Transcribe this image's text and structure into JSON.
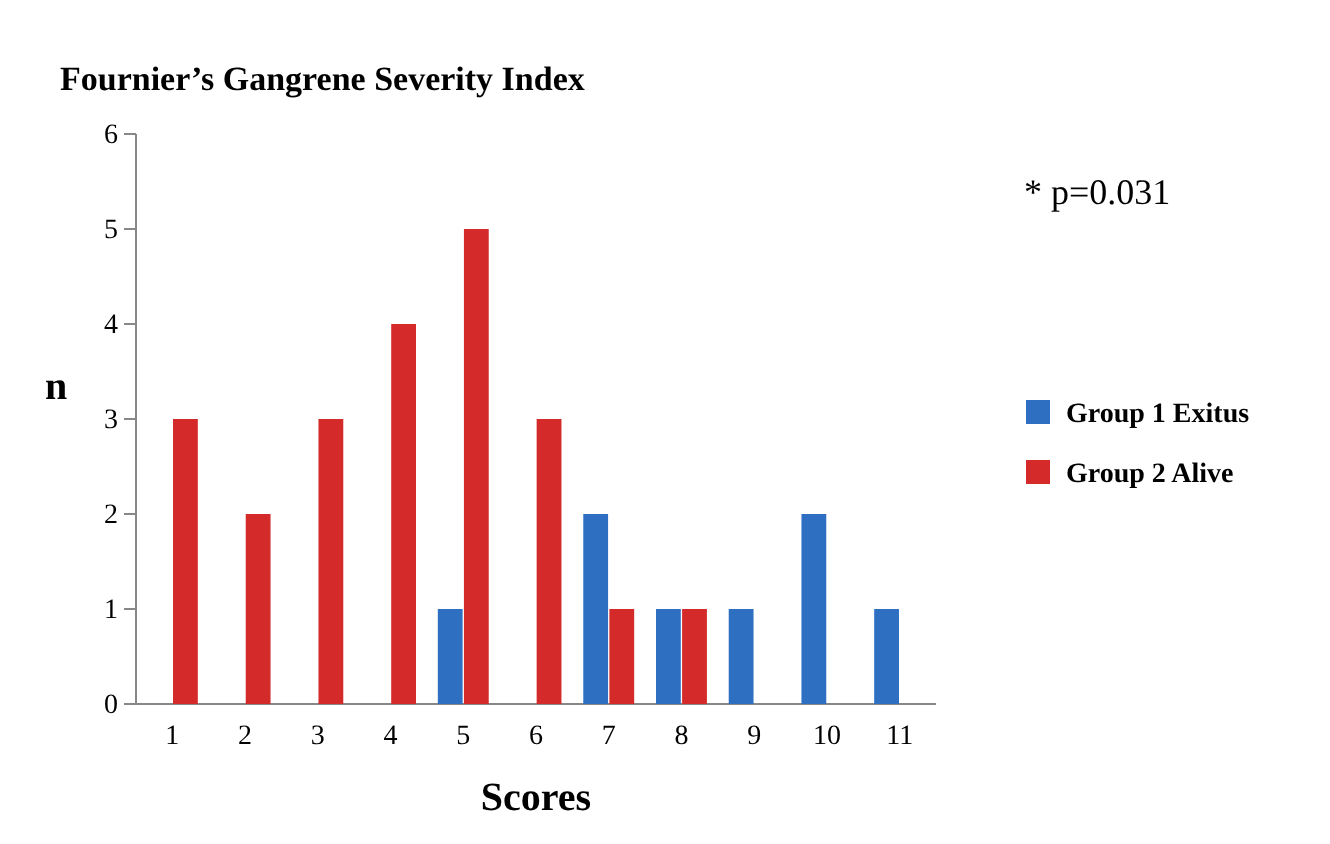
{
  "chart_data": {
    "type": "bar",
    "title": "Fournier’s Gangrene Severity Index",
    "xlabel": "Scores",
    "ylabel": "n",
    "categories": [
      "1",
      "2",
      "3",
      "4",
      "5",
      "6",
      "7",
      "8",
      "9",
      "10",
      "11"
    ],
    "series": [
      {
        "name": "Group 1 Exitus",
        "color": "#2e6fc2",
        "values": [
          0,
          0,
          0,
          0,
          1,
          0,
          2,
          1,
          1,
          2,
          1
        ]
      },
      {
        "name": "Group 2 Alive",
        "color": "#d42a2a",
        "values": [
          3,
          2,
          3,
          4,
          5,
          3,
          1,
          1,
          0,
          0,
          0
        ]
      }
    ],
    "ylim": [
      0,
      6
    ],
    "yticks": [
      0,
      1,
      2,
      3,
      4,
      5,
      6
    ],
    "grid": false,
    "legend": "right",
    "annotations": [
      "* p=0.031"
    ]
  }
}
